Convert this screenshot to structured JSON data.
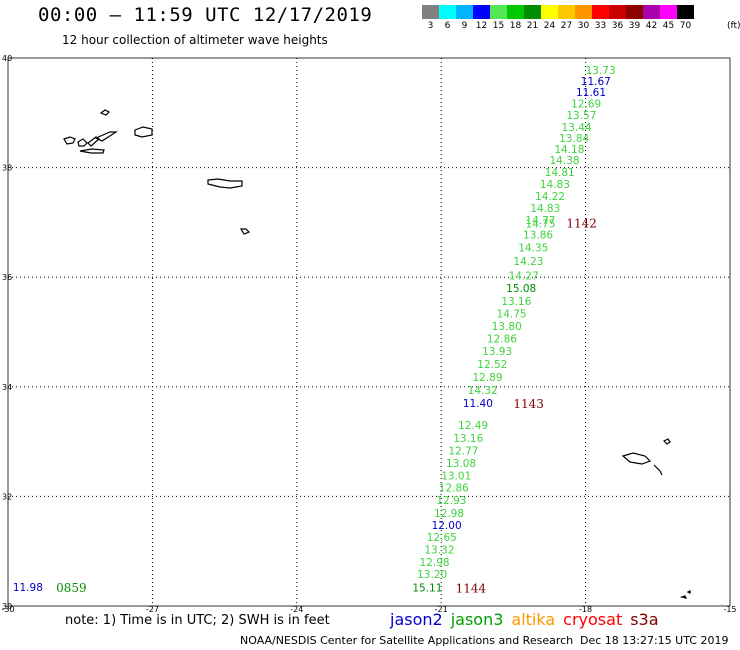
{
  "header": {
    "title": "00:00 – 11:59 UTC 12/17/2019",
    "subtitle": "12 hour collection of altimeter wave heights"
  },
  "legend": {
    "unit": "(ft)",
    "bins": [
      {
        "label": "3",
        "color": "#808080"
      },
      {
        "label": "6",
        "color": "#00ffff"
      },
      {
        "label": "9",
        "color": "#00b4ff"
      },
      {
        "label": "12",
        "color": "#0000ff"
      },
      {
        "label": "15",
        "color": "#55e655"
      },
      {
        "label": "18",
        "color": "#00c800"
      },
      {
        "label": "21",
        "color": "#008c00"
      },
      {
        "label": "24",
        "color": "#ffff00"
      },
      {
        "label": "27",
        "color": "#ffc800"
      },
      {
        "label": "30",
        "color": "#ff9600"
      },
      {
        "label": "33",
        "color": "#ff0000"
      },
      {
        "label": "36",
        "color": "#c80000"
      },
      {
        "label": "39",
        "color": "#8c0000"
      },
      {
        "label": "42",
        "color": "#aa00aa"
      },
      {
        "label": "45",
        "color": "#ff00ff"
      },
      {
        "label": "70",
        "color": "#000000"
      }
    ]
  },
  "map": {
    "lon_range": [
      -30,
      -15
    ],
    "lat_range": [
      30,
      40
    ],
    "lon_ticks": [
      "-30",
      "-27",
      "-24",
      "-21",
      "-18",
      "-15"
    ],
    "lat_ticks": [
      "40",
      "38",
      "36",
      "34",
      "32",
      "30"
    ],
    "colors": {
      "light_green": "#3ed43e",
      "green": "#009000",
      "blue": "#0000cc",
      "dark_red": "#800000"
    },
    "observations": [
      {
        "lon": -18.0,
        "lat": 39.78,
        "value": "13.73",
        "color": "light_green"
      },
      {
        "lon": -18.1,
        "lat": 39.58,
        "value": "11.67",
        "color": "blue"
      },
      {
        "lon": -18.2,
        "lat": 39.38,
        "value": "11.61",
        "color": "blue"
      },
      {
        "lon": -18.3,
        "lat": 39.17,
        "value": "12.69",
        "color": "light_green"
      },
      {
        "lon": -18.4,
        "lat": 38.96,
        "value": "13.57",
        "color": "light_green"
      },
      {
        "lon": -18.5,
        "lat": 38.74,
        "value": "13.44",
        "color": "light_green"
      },
      {
        "lon": -18.55,
        "lat": 38.54,
        "value": "13.84",
        "color": "light_green"
      },
      {
        "lon": -18.65,
        "lat": 38.34,
        "value": "14.18",
        "color": "light_green"
      },
      {
        "lon": -18.75,
        "lat": 38.14,
        "value": "14.38",
        "color": "light_green"
      },
      {
        "lon": -18.85,
        "lat": 37.92,
        "value": "14.81",
        "color": "light_green"
      },
      {
        "lon": -18.95,
        "lat": 37.7,
        "value": "14.83",
        "color": "light_green"
      },
      {
        "lon": -19.05,
        "lat": 37.48,
        "value": "14.22",
        "color": "light_green"
      },
      {
        "lon": -19.15,
        "lat": 37.26,
        "value": "14.83",
        "color": "light_green"
      },
      {
        "lon": -19.25,
        "lat": 37.04,
        "value": "14.77",
        "color": "light_green"
      },
      {
        "lon": -19.25,
        "lat": 36.98,
        "value": "14.75",
        "color": "light_green"
      },
      {
        "lon": -19.3,
        "lat": 36.78,
        "value": "13.86",
        "color": "light_green"
      },
      {
        "lon": -19.4,
        "lat": 36.54,
        "value": "14.35",
        "color": "light_green"
      },
      {
        "lon": -19.5,
        "lat": 36.3,
        "value": "14.23",
        "color": "light_green"
      },
      {
        "lon": -19.6,
        "lat": 36.03,
        "value": "14.27",
        "color": "light_green"
      },
      {
        "lon": -19.65,
        "lat": 35.8,
        "value": "15.08",
        "color": "green"
      },
      {
        "lon": -19.75,
        "lat": 35.57,
        "value": "13.16",
        "color": "light_green"
      },
      {
        "lon": -19.85,
        "lat": 35.34,
        "value": "14.75",
        "color": "light_green"
      },
      {
        "lon": -19.95,
        "lat": 35.11,
        "value": "13.80",
        "color": "light_green"
      },
      {
        "lon": -20.05,
        "lat": 34.88,
        "value": "12.86",
        "color": "light_green"
      },
      {
        "lon": -20.15,
        "lat": 34.65,
        "value": "13.93",
        "color": "light_green"
      },
      {
        "lon": -20.25,
        "lat": 34.42,
        "value": "12.52",
        "color": "light_green"
      },
      {
        "lon": -20.35,
        "lat": 34.18,
        "value": "12.89",
        "color": "light_green"
      },
      {
        "lon": -20.45,
        "lat": 33.94,
        "value": "14.32",
        "color": "light_green"
      },
      {
        "lon": -20.55,
        "lat": 33.7,
        "value": "11.40",
        "color": "blue"
      },
      {
        "lon": -20.65,
        "lat": 33.3,
        "value": "12.49",
        "color": "light_green"
      },
      {
        "lon": -20.75,
        "lat": 33.07,
        "value": "13.16",
        "color": "light_green"
      },
      {
        "lon": -20.85,
        "lat": 32.84,
        "value": "12.77",
        "color": "light_green"
      },
      {
        "lon": -20.9,
        "lat": 32.61,
        "value": "13.08",
        "color": "light_green"
      },
      {
        "lon": -21.0,
        "lat": 32.38,
        "value": "13.01",
        "color": "light_green"
      },
      {
        "lon": -21.05,
        "lat": 32.16,
        "value": "12.86",
        "color": "light_green"
      },
      {
        "lon": -21.1,
        "lat": 31.93,
        "value": "12.93",
        "color": "light_green"
      },
      {
        "lon": -21.15,
        "lat": 31.7,
        "value": "12.98",
        "color": "light_green"
      },
      {
        "lon": -21.2,
        "lat": 31.48,
        "value": "12.00",
        "color": "blue"
      },
      {
        "lon": -21.3,
        "lat": 31.26,
        "value": "12.65",
        "color": "light_green"
      },
      {
        "lon": -21.35,
        "lat": 31.03,
        "value": "13.32",
        "color": "light_green"
      },
      {
        "lon": -21.45,
        "lat": 30.8,
        "value": "12.98",
        "color": "light_green"
      },
      {
        "lon": -21.5,
        "lat": 30.58,
        "value": "13.20",
        "color": "light_green"
      },
      {
        "lon": -21.6,
        "lat": 30.34,
        "value": "15.11",
        "color": "green"
      },
      {
        "lon": -29.9,
        "lat": 30.35,
        "value": "11.98",
        "color": "blue"
      }
    ],
    "times": [
      {
        "lon": -18.4,
        "lat": 37.0,
        "value": "1142",
        "color": "dark_red"
      },
      {
        "lon": -19.5,
        "lat": 33.7,
        "value": "1143",
        "color": "dark_red"
      },
      {
        "lon": -20.7,
        "lat": 30.34,
        "value": "1144",
        "color": "dark_red"
      },
      {
        "lon": -29.0,
        "lat": 30.35,
        "value": "0859",
        "color": "green"
      }
    ]
  },
  "footer": {
    "note": "note: 1) Time is in UTC; 2) SWH is in feet",
    "satellites": [
      {
        "name": "jason2",
        "color": "#0000cc"
      },
      {
        "name": "jason3",
        "color": "#00a000"
      },
      {
        "name": "altika",
        "color": "#ff9600"
      },
      {
        "name": "cryosat",
        "color": "#ff0000"
      },
      {
        "name": "s3a",
        "color": "#800000"
      }
    ],
    "source": "NOAA/NESDIS Center for Satellite Applications and Research",
    "timestamp": "Dec 18 13:27:15 UTC 2019"
  }
}
